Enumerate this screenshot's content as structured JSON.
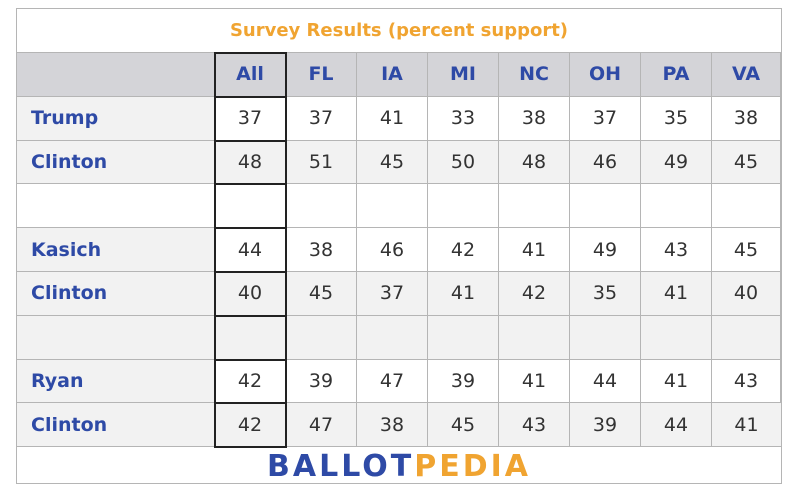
{
  "chart_data": {
    "type": "table",
    "title": "Survey Results (percent support)",
    "columns": [
      "All",
      "FL",
      "IA",
      "MI",
      "NC",
      "OH",
      "PA",
      "VA"
    ],
    "rows": [
      {
        "label": "Trump",
        "values": [
          "37",
          "37",
          "41",
          "33",
          "38",
          "37",
          "35",
          "38"
        ],
        "style": "white"
      },
      {
        "label": "Clinton",
        "values": [
          "48",
          "51",
          "45",
          "50",
          "48",
          "46",
          "49",
          "45"
        ],
        "style": "alt"
      },
      {
        "label": "",
        "values": [
          "",
          "",
          "",
          "",
          "",
          "",
          "",
          ""
        ],
        "style": "spacer"
      },
      {
        "label": "Kasich",
        "values": [
          "44",
          "38",
          "46",
          "42",
          "41",
          "49",
          "43",
          "45"
        ],
        "style": "white"
      },
      {
        "label": "Clinton",
        "values": [
          "40",
          "45",
          "37",
          "41",
          "42",
          "35",
          "41",
          "40"
        ],
        "style": "alt"
      },
      {
        "label": "",
        "values": [
          "",
          "",
          "",
          "",
          "",
          "",
          "",
          ""
        ],
        "style": "spacer-alt"
      },
      {
        "label": "Ryan",
        "values": [
          "42",
          "39",
          "47",
          "39",
          "41",
          "44",
          "41",
          "43"
        ],
        "style": "white"
      },
      {
        "label": "Clinton",
        "values": [
          "42",
          "47",
          "38",
          "45",
          "43",
          "39",
          "44",
          "41"
        ],
        "style": "alt"
      }
    ]
  },
  "brand": {
    "part1": "BALLOT",
    "part2": "PEDIA"
  },
  "colors": {
    "title": "#f0a431",
    "label": "#2e4aa6",
    "header_bg": "#d4d4d8",
    "alt_bg": "#f2f2f2"
  }
}
